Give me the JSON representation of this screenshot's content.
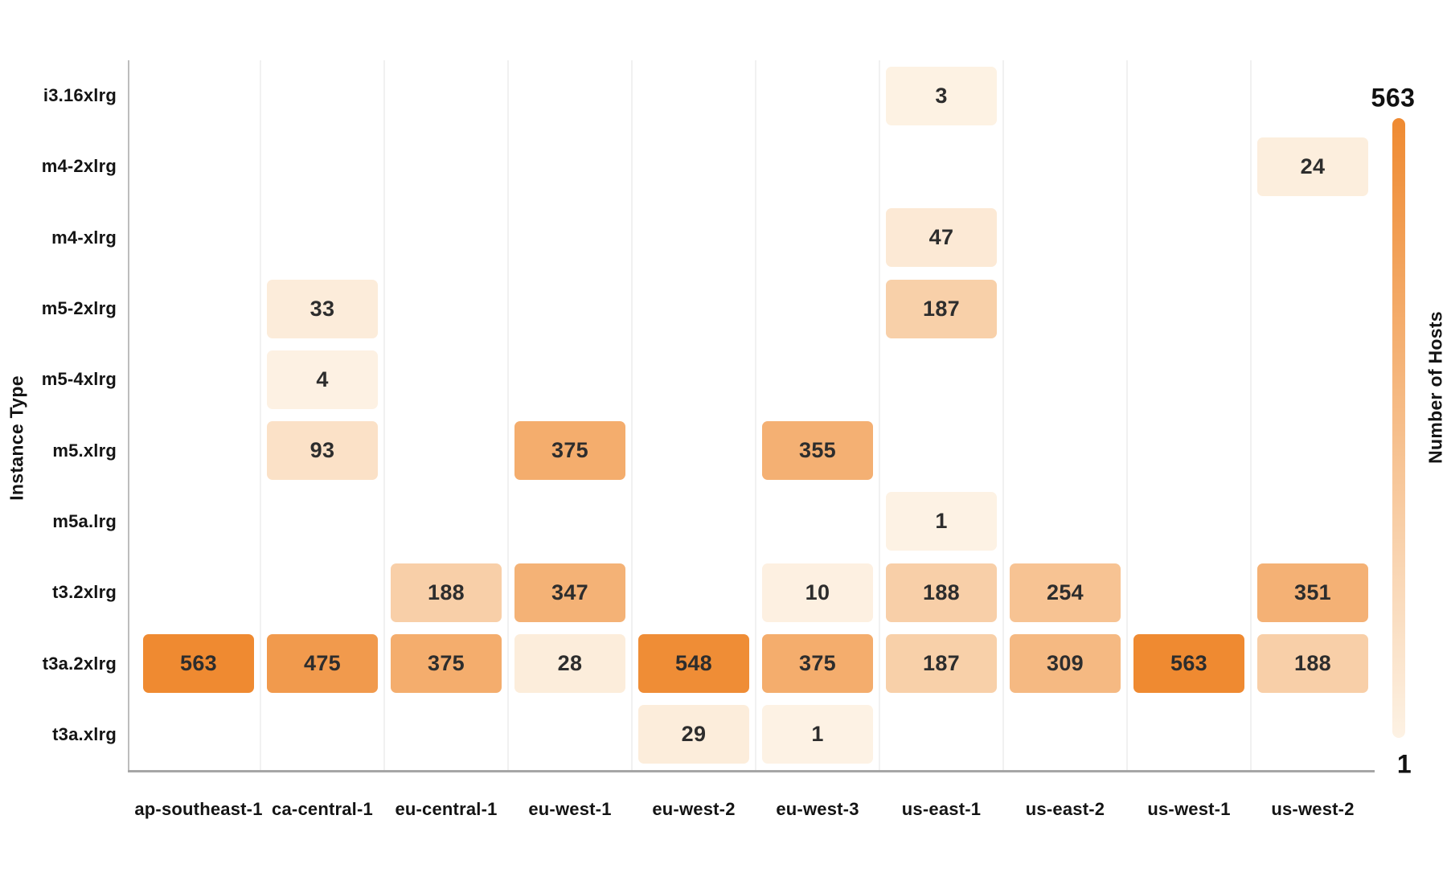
{
  "chart_data": {
    "type": "heatmap",
    "xlabel": "",
    "ylabel": "Instance Type",
    "x_categories": [
      "ap-southeast-1",
      "ca-central-1",
      "eu-central-1",
      "eu-west-1",
      "eu-west-2",
      "eu-west-3",
      "us-east-1",
      "us-east-2",
      "us-west-1",
      "us-west-2"
    ],
    "y_categories": [
      "i3.16xlrg",
      "m4-2xlrg",
      "m4-xlrg",
      "m5-2xlrg",
      "m5-4xlrg",
      "m5.xlrg",
      "m5a.lrg",
      "t3.2xlrg",
      "t3a.2xlrg",
      "t3a.xlrg"
    ],
    "vmin": 1,
    "vmax": 563,
    "colorbar": {
      "label": "Number of Hosts",
      "max_label": "563",
      "min_label": "1",
      "color_min": "#fdf2e4",
      "color_max": "#ef8a31"
    },
    "cells": [
      {
        "x": "ap-southeast-1",
        "y": "t3a.2xlrg",
        "value": 563
      },
      {
        "x": "ca-central-1",
        "y": "m5-2xlrg",
        "value": 33
      },
      {
        "x": "ca-central-1",
        "y": "m5-4xlrg",
        "value": 4
      },
      {
        "x": "ca-central-1",
        "y": "m5.xlrg",
        "value": 93
      },
      {
        "x": "ca-central-1",
        "y": "t3a.2xlrg",
        "value": 475
      },
      {
        "x": "eu-central-1",
        "y": "t3.2xlrg",
        "value": 188
      },
      {
        "x": "eu-central-1",
        "y": "t3a.2xlrg",
        "value": 375
      },
      {
        "x": "eu-west-1",
        "y": "m5.xlrg",
        "value": 375
      },
      {
        "x": "eu-west-1",
        "y": "t3.2xlrg",
        "value": 347
      },
      {
        "x": "eu-west-1",
        "y": "t3a.2xlrg",
        "value": 28
      },
      {
        "x": "eu-west-2",
        "y": "t3a.2xlrg",
        "value": 548
      },
      {
        "x": "eu-west-2",
        "y": "t3a.xlrg",
        "value": 29
      },
      {
        "x": "eu-west-3",
        "y": "m5.xlrg",
        "value": 355
      },
      {
        "x": "eu-west-3",
        "y": "t3.2xlrg",
        "value": 10
      },
      {
        "x": "eu-west-3",
        "y": "t3a.2xlrg",
        "value": 375
      },
      {
        "x": "eu-west-3",
        "y": "t3a.xlrg",
        "value": 1
      },
      {
        "x": "us-east-1",
        "y": "i3.16xlrg",
        "value": 3
      },
      {
        "x": "us-east-1",
        "y": "m4-xlrg",
        "value": 47
      },
      {
        "x": "us-east-1",
        "y": "m5-2xlrg",
        "value": 187
      },
      {
        "x": "us-east-1",
        "y": "m5a.lrg",
        "value": 1
      },
      {
        "x": "us-east-1",
        "y": "t3.2xlrg",
        "value": 188
      },
      {
        "x": "us-east-1",
        "y": "t3a.2xlrg",
        "value": 187
      },
      {
        "x": "us-east-2",
        "y": "t3.2xlrg",
        "value": 254
      },
      {
        "x": "us-east-2",
        "y": "t3a.2xlrg",
        "value": 309
      },
      {
        "x": "us-west-1",
        "y": "t3a.2xlrg",
        "value": 563
      },
      {
        "x": "us-west-2",
        "y": "m4-2xlrg",
        "value": 24
      },
      {
        "x": "us-west-2",
        "y": "t3.2xlrg",
        "value": 351
      },
      {
        "x": "us-west-2",
        "y": "t3a.2xlrg",
        "value": 188
      }
    ]
  }
}
